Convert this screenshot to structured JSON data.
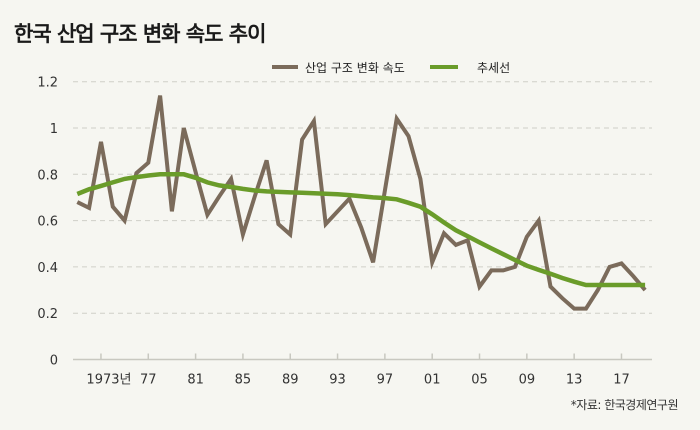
{
  "title": "한국 산업 구조 변화 속도 추이",
  "source": "*자료: 한국경제연구원",
  "colors": {
    "series": "#7b6b5b",
    "trend": "#6a9c2a",
    "grid": "#cfcfc8",
    "axis": "#c8c8c0"
  },
  "chart_data": {
    "type": "line",
    "title": "한국 산업 구조 변화 속도 추이",
    "xlabel": "",
    "ylabel": "",
    "ylim": [
      0,
      1.2
    ],
    "yticks": [
      "0",
      "0.2",
      "0.4",
      "0.6",
      "0.8",
      "1",
      "1.2"
    ],
    "xticks": [
      {
        "year": 1973,
        "label": "1973년"
      },
      {
        "year": 1977,
        "label": "77"
      },
      {
        "year": 1981,
        "label": "81"
      },
      {
        "year": 1985,
        "label": "85"
      },
      {
        "year": 1989,
        "label": "89"
      },
      {
        "year": 1993,
        "label": "93"
      },
      {
        "year": 1997,
        "label": "97"
      },
      {
        "year": 2001,
        "label": "01"
      },
      {
        "year": 2005,
        "label": "05"
      },
      {
        "year": 2009,
        "label": "09"
      },
      {
        "year": 2013,
        "label": "13"
      },
      {
        "year": 2017,
        "label": "17"
      }
    ],
    "grid": true,
    "legend_position": "top-center",
    "x": [
      1971,
      1972,
      1973,
      1974,
      1975,
      1976,
      1977,
      1978,
      1979,
      1980,
      1981,
      1982,
      1983,
      1984,
      1985,
      1986,
      1987,
      1988,
      1989,
      1990,
      1991,
      1992,
      1993,
      1994,
      1995,
      1996,
      1997,
      1998,
      1999,
      2000,
      2001,
      2002,
      2003,
      2004,
      2005,
      2006,
      2007,
      2008,
      2009,
      2010,
      2011,
      2012,
      2013,
      2014,
      2015,
      2016,
      2017,
      2018,
      2019
    ],
    "series": [
      {
        "name": "산업 구조 변화 속도",
        "values": [
          0.68,
          0.655,
          0.94,
          0.66,
          0.6,
          0.805,
          0.85,
          1.14,
          0.64,
          1.0,
          0.81,
          0.625,
          0.705,
          0.78,
          0.54,
          0.705,
          0.86,
          0.585,
          0.54,
          0.95,
          1.03,
          0.585,
          0.64,
          0.695,
          0.57,
          0.42,
          0.73,
          1.04,
          0.965,
          0.78,
          0.42,
          0.545,
          0.495,
          0.515,
          0.315,
          0.385,
          0.385,
          0.4,
          0.53,
          0.6,
          0.315,
          0.265,
          0.22,
          0.22,
          0.3,
          0.4,
          0.415,
          0.36,
          0.3
        ]
      },
      {
        "name": "추세선",
        "values": [
          0.715,
          0.735,
          0.75,
          0.765,
          0.78,
          0.788,
          0.795,
          0.8,
          0.8,
          0.8,
          0.785,
          0.765,
          0.752,
          0.745,
          0.737,
          0.73,
          0.726,
          0.724,
          0.722,
          0.72,
          0.718,
          0.716,
          0.714,
          0.71,
          0.705,
          0.7,
          0.697,
          0.692,
          0.677,
          0.66,
          0.627,
          0.592,
          0.558,
          0.532,
          0.506,
          0.48,
          0.455,
          0.43,
          0.405,
          0.387,
          0.37,
          0.352,
          0.336,
          0.322,
          0.322,
          0.322,
          0.322,
          0.322,
          0.322
        ]
      }
    ]
  }
}
